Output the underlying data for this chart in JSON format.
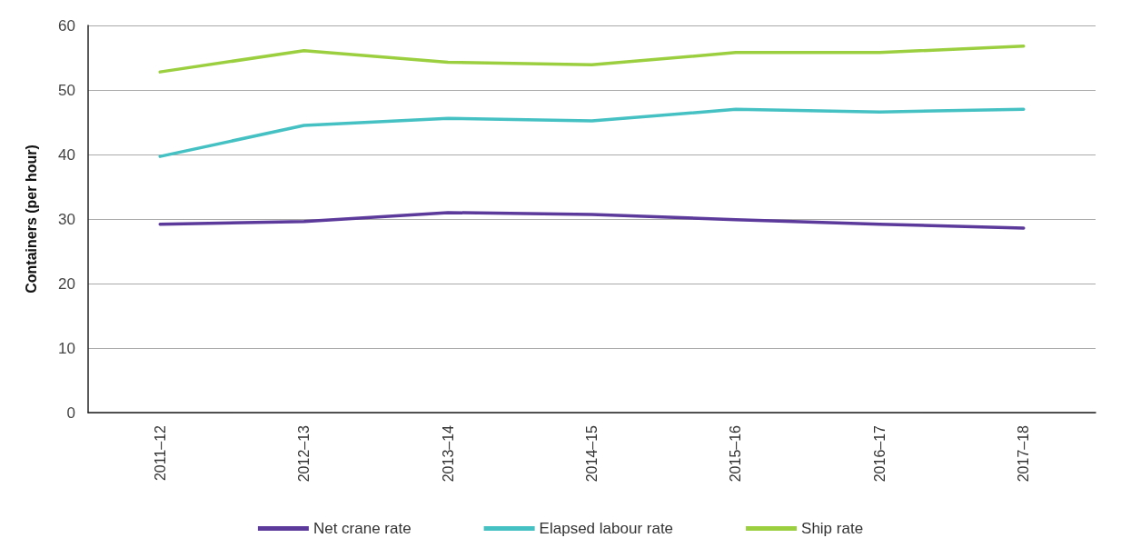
{
  "chart_data": {
    "type": "line",
    "ylabel": "Containers (per hour)",
    "categories": [
      "2011–12",
      "2012–13",
      "2013–14",
      "2014–15",
      "2015–16",
      "2016–17",
      "2017–18"
    ],
    "series": [
      {
        "name": "Net crane rate",
        "color": "#5b3a9b",
        "values": [
          29.2,
          29.6,
          31.0,
          30.7,
          29.9,
          29.2,
          28.6
        ]
      },
      {
        "name": "Elapsed labour rate",
        "color": "#45c1c4",
        "values": [
          39.7,
          44.5,
          45.6,
          45.2,
          47.0,
          46.6,
          47.0
        ]
      },
      {
        "name": "Ship rate",
        "color": "#9ccf40",
        "values": [
          52.8,
          56.1,
          54.3,
          53.9,
          55.8,
          55.8,
          56.8
        ]
      }
    ],
    "ylim": [
      0,
      60
    ],
    "yticks": [
      0,
      10,
      20,
      30,
      40,
      50,
      60
    ],
    "grid": "y",
    "legend": "bottom",
    "marker": "none",
    "line_style": "solid"
  }
}
